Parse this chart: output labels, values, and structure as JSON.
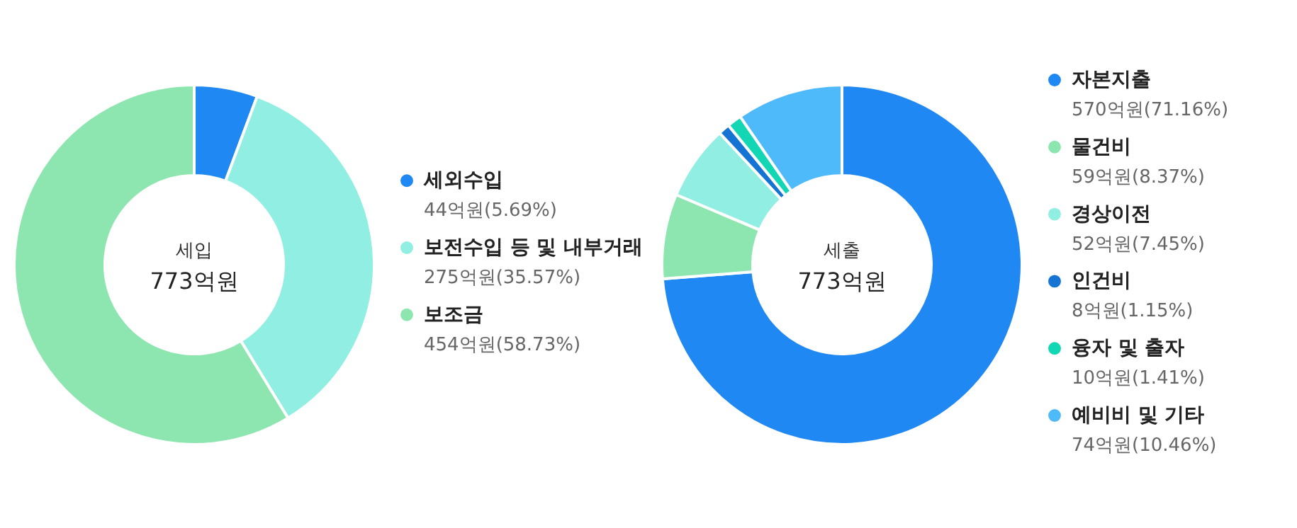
{
  "chart_data": [
    {
      "type": "donut",
      "title": "세입",
      "subtitle": "773억원",
      "legend": "right",
      "categories": [
        "세외수입",
        "보전수입 등 및 내부거래",
        "보조금"
      ],
      "values": [
        44,
        275,
        454
      ],
      "colors": [
        "#2088f2",
        "#90efe2",
        "#8de6b0"
      ],
      "value_labels": [
        "44억원(5.69%)",
        "275억원(35.57%)",
        "454억원(58.73%)"
      ]
    },
    {
      "type": "donut",
      "title": "세출",
      "subtitle": "773억원",
      "legend": "right",
      "categories": [
        "자본지출",
        "물건비",
        "경상이전",
        "인건비",
        "융자 및 출자",
        "예비비 및 기타"
      ],
      "values": [
        570,
        59,
        52,
        8,
        10,
        74
      ],
      "colors": [
        "#2088f2",
        "#8de6b0",
        "#90efe2",
        "#1573d3",
        "#12d6b4",
        "#4fbafa"
      ],
      "value_labels": [
        "570억원(71.16%)",
        "59억원(8.37%)",
        "52억원(7.45%)",
        "8억원(1.15%)",
        "10억원(1.41%)",
        "74억원(10.46%)"
      ]
    }
  ]
}
